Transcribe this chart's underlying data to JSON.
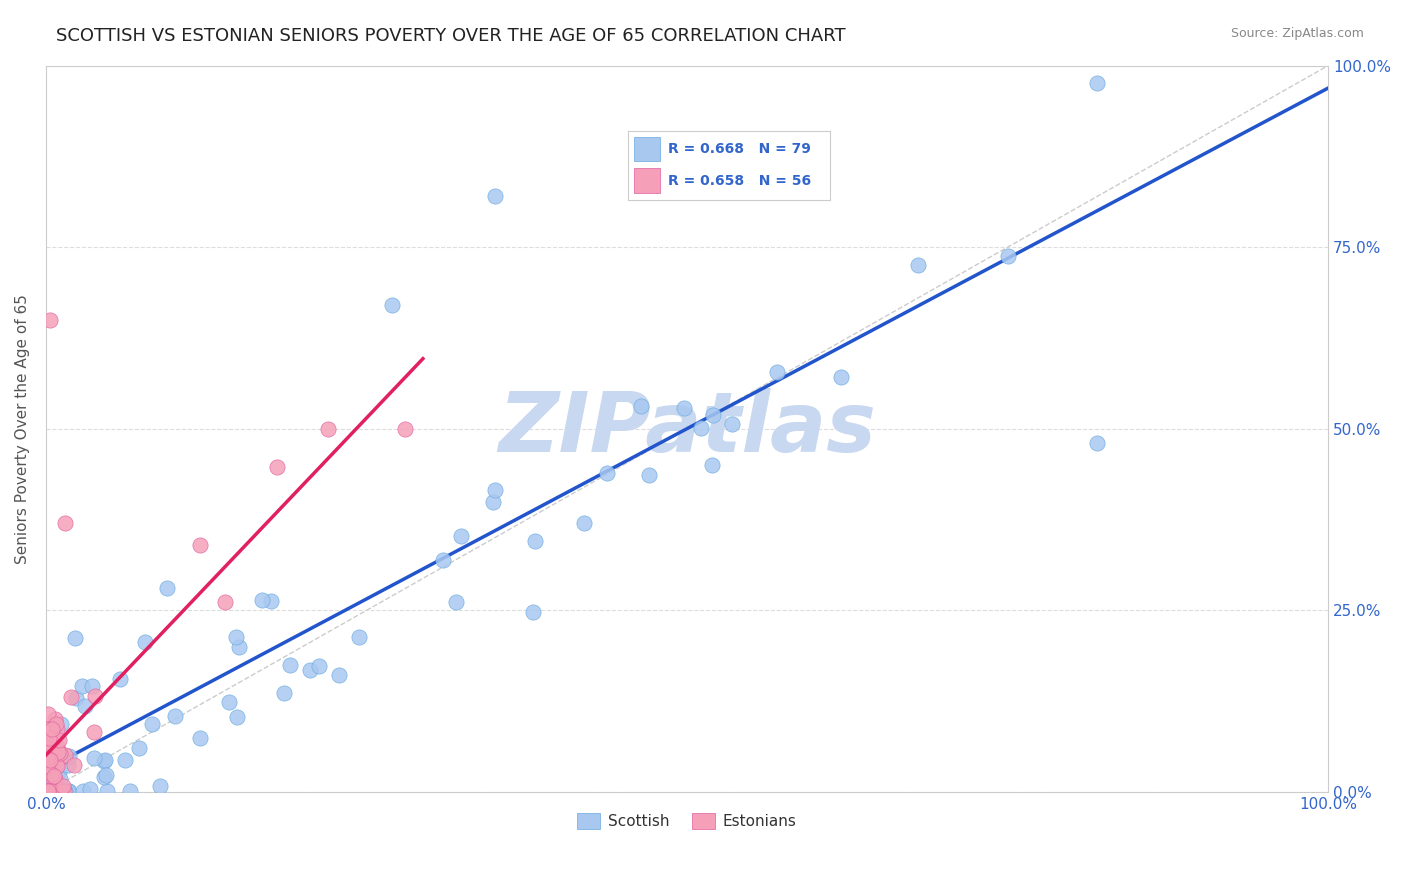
{
  "title": "SCOTTISH VS ESTONIAN SENIORS POVERTY OVER THE AGE OF 65 CORRELATION CHART",
  "source": "Source: ZipAtlas.com",
  "ylabel": "Seniors Poverty Over the Age of 65",
  "xlim": [
    0,
    1
  ],
  "ylim": [
    0,
    1
  ],
  "xtick_positions": [
    0,
    1
  ],
  "xtick_labels": [
    "0.0%",
    "100.0%"
  ],
  "ytick_vals": [
    0.0,
    0.25,
    0.5,
    0.75,
    1.0
  ],
  "ytick_labels": [
    "0.0%",
    "25.0%",
    "50.0%",
    "75.0%",
    "100.0%"
  ],
  "legend_r_scottish": "R = 0.668",
  "legend_n_scottish": "N = 79",
  "legend_r_estonian": "R = 0.658",
  "legend_n_estonian": "N = 56",
  "scottish_color": "#a8c8f0",
  "scottish_edge": "#6aaae0",
  "estonian_color": "#f5a0b8",
  "estonian_edge": "#e060a0",
  "trendline_scottish_color": "#2255cc",
  "trendline_estonian_color": "#e02060",
  "ref_line_color": "#cccccc",
  "watermark_text": "ZIPatlas",
  "watermark_color": "#c8d8f0",
  "background_color": "#ffffff",
  "grid_color": "#dddddd",
  "title_fontsize": 13,
  "axis_label_fontsize": 11,
  "tick_fontsize": 11,
  "tick_color": "#3366cc",
  "legend_text_color": "#3366cc"
}
